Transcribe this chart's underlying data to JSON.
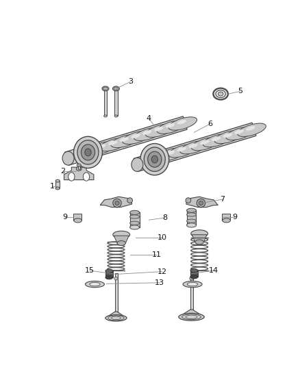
{
  "figsize": [
    4.38,
    5.33
  ],
  "dpi": 100,
  "bg": "#ffffff",
  "lc": "#444444",
  "leader_c": "#888888",
  "part_gray": "#cccccc",
  "part_dark": "#333333",
  "part_mid": "#aaaaaa",
  "label_fs": 8.0
}
